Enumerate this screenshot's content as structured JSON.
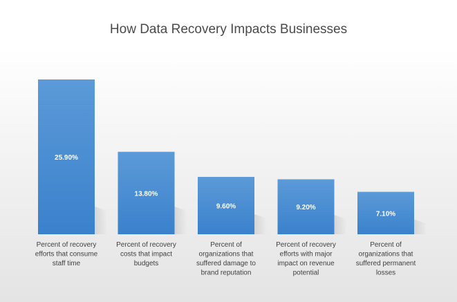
{
  "chart_data": {
    "type": "bar",
    "title": "How Data Recovery Impacts Businesses",
    "categories": [
      [
        "Percent of recovery",
        "efforts that consume",
        "staff time"
      ],
      [
        "Percent of recovery",
        "costs that impact",
        "budgets"
      ],
      [
        "Percent of",
        "organizations that",
        "suffered damage to",
        "brand reputation"
      ],
      [
        "Percent of recovery",
        "efforts with major",
        "impact on revenue",
        "potential"
      ],
      [
        "Percent of",
        "organizations that",
        "suffered permanent",
        "losses"
      ]
    ],
    "values": [
      25.9,
      13.8,
      9.6,
      9.2,
      7.1
    ],
    "data_labels": [
      "25.90%",
      "13.80%",
      "9.60%",
      "9.20%",
      "7.10%"
    ],
    "ylim": [
      0,
      25.9
    ],
    "grid": false,
    "legend": "none",
    "colors": {
      "bar": "#3a81cc",
      "bar_highlight": "#5c9ad8",
      "label": "#ffffff",
      "category_text": "#404040"
    }
  }
}
